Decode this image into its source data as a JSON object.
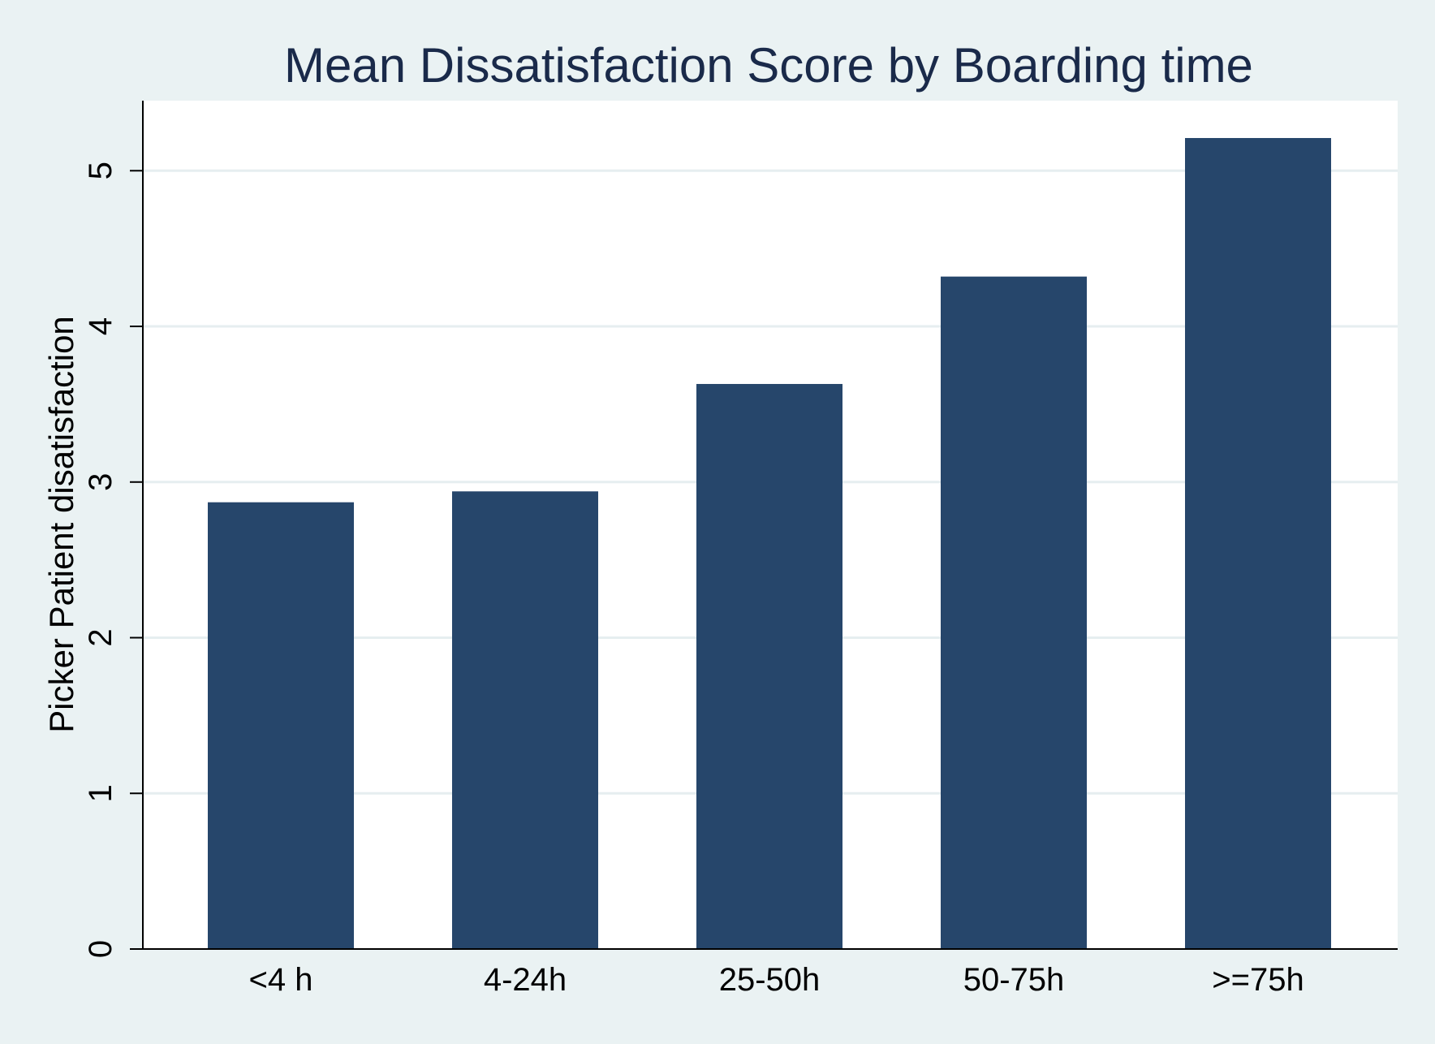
{
  "chart_data": {
    "type": "bar",
    "title": "Mean Dissatisfaction Score by Boarding time",
    "xlabel": "",
    "ylabel": "Picker Patient disatisfaction",
    "categories": [
      "<4 h",
      "4-24h",
      "25-50h",
      "50-75h",
      ">=75h"
    ],
    "values": [
      2.87,
      2.94,
      3.63,
      4.32,
      5.21
    ],
    "ylim": [
      0,
      5.45
    ],
    "yticks": [
      "0",
      "1",
      "2",
      "3",
      "4",
      "5"
    ],
    "grid": true,
    "legend": "none"
  },
  "colors": {
    "bar": "#26466b",
    "background": "#eaf2f3",
    "plot_area": "#ffffff",
    "grid": "#e6eef0",
    "title": "#1a2a4a"
  }
}
